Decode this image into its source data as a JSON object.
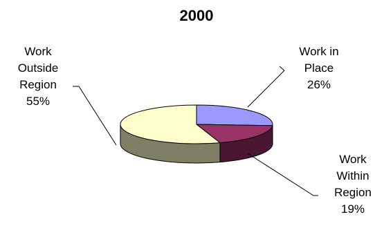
{
  "chart_data": {
    "type": "pie",
    "title": "2000",
    "slices": [
      {
        "label_lines": [
          "Work in",
          "Place"
        ],
        "value": 26,
        "value_label": "26%",
        "color": "#9999ff",
        "side_color": "#5f5f9f"
      },
      {
        "label_lines": [
          "Work",
          "Within",
          "Region"
        ],
        "value": 19,
        "value_label": "19%",
        "color": "#993366",
        "side_color": "#4a1631"
      },
      {
        "label_lines": [
          "Work",
          "Outside",
          "Region"
        ],
        "value": 55,
        "value_label": "55%",
        "color": "#ffffcc",
        "side_color": "#7f7f66"
      }
    ],
    "legend": "none",
    "style": "3d"
  }
}
